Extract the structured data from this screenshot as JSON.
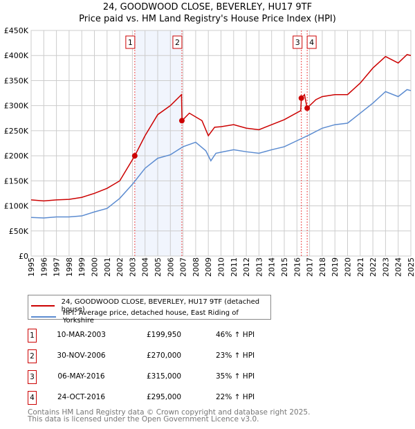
{
  "chart_data": {
    "type": "line",
    "title": "24, GOODWOOD CLOSE, BEVERLEY, HU17 9TF",
    "subtitle": "Price paid vs. HM Land Registry's House Price Index (HPI)",
    "xlim": [
      1995,
      2025
    ],
    "ylim": [
      0,
      450000
    ],
    "y_ticks": [
      0,
      50000,
      100000,
      150000,
      200000,
      250000,
      300000,
      350000,
      400000,
      450000
    ],
    "y_tick_labels": [
      "£0",
      "£50K",
      "£100K",
      "£150K",
      "£200K",
      "£250K",
      "£300K",
      "£350K",
      "£400K",
      "£450K"
    ],
    "x_ticks": [
      "1995",
      "1996",
      "1997",
      "1998",
      "1999",
      "2000",
      "2001",
      "2002",
      "2003",
      "2004",
      "2005",
      "2006",
      "2007",
      "2008",
      "2009",
      "2010",
      "2011",
      "2012",
      "2013",
      "2014",
      "2015",
      "2016",
      "2017",
      "2018",
      "2019",
      "2020",
      "2021",
      "2022",
      "2023",
      "2024",
      "2025"
    ],
    "grid": true,
    "legend_placement": "below",
    "series": [
      {
        "name": "24, GOODWOOD CLOSE, BEVERLEY, HU17 9TF (detached house)",
        "color": "#cc0000",
        "x": [
          1995,
          1996,
          1997,
          1998,
          1999,
          2000,
          2001,
          2002,
          2003.19,
          2004,
          2005,
          2006,
          2006.88,
          2006.92,
          2007.5,
          2008.5,
          2009,
          2009.5,
          2010,
          2011,
          2012,
          2013,
          2014,
          2015,
          2016.3,
          2016.35,
          2016.6,
          2016.8,
          2017.5,
          2018,
          2019,
          2020,
          2021,
          2022,
          2023,
          2024,
          2024.7,
          2025
        ],
        "y": [
          112000,
          110000,
          112000,
          113000,
          117000,
          125000,
          135000,
          150000,
          199950,
          240000,
          282000,
          300000,
          322000,
          270000,
          285000,
          270000,
          240000,
          257000,
          258000,
          262000,
          255000,
          252000,
          262000,
          272000,
          290000,
          315000,
          322000,
          295000,
          312000,
          318000,
          322000,
          322000,
          345000,
          375000,
          398000,
          385000,
          402000,
          400000
        ]
      },
      {
        "name": "HPI: Average price, detached house, East Riding of Yorkshire",
        "color": "#5b8bd0",
        "x": [
          1995,
          1996,
          1997,
          1998,
          1999,
          2000,
          2001,
          2002,
          2003,
          2004,
          2005,
          2006,
          2007,
          2008,
          2008.8,
          2009.2,
          2009.6,
          2010,
          2011,
          2012,
          2013,
          2014,
          2015,
          2016,
          2017,
          2018,
          2019,
          2020,
          2021,
          2022,
          2023,
          2024,
          2024.7,
          2025
        ],
        "y": [
          77000,
          76000,
          78000,
          78000,
          80000,
          88000,
          95000,
          115000,
          143000,
          175000,
          195000,
          202000,
          218000,
          227000,
          210000,
          190000,
          205000,
          207000,
          212000,
          208000,
          205000,
          212000,
          218000,
          230000,
          242000,
          255000,
          262000,
          265000,
          285000,
          305000,
          328000,
          318000,
          332000,
          330000
        ]
      }
    ],
    "sales": [
      {
        "n": "1",
        "date": "10-MAR-2003",
        "x": 2003.19,
        "price": "£199,950",
        "value": 199950,
        "hpi": "46% ↑ HPI"
      },
      {
        "n": "2",
        "date": "30-NOV-2006",
        "x": 2006.91,
        "price": "£270,000",
        "value": 270000,
        "hpi": "23% ↑ HPI"
      },
      {
        "n": "3",
        "date": "06-MAY-2016",
        "x": 2016.35,
        "price": "£315,000",
        "value": 315000,
        "hpi": "35% ↑ HPI"
      },
      {
        "n": "4",
        "date": "24-OCT-2016",
        "x": 2016.81,
        "price": "£295,000",
        "value": 295000,
        "hpi": "22% ↑ HPI"
      }
    ]
  },
  "footer": [
    "Contains HM Land Registry data © Crown copyright and database right 2025.",
    "This data is licensed under the Open Government Licence v3.0."
  ]
}
